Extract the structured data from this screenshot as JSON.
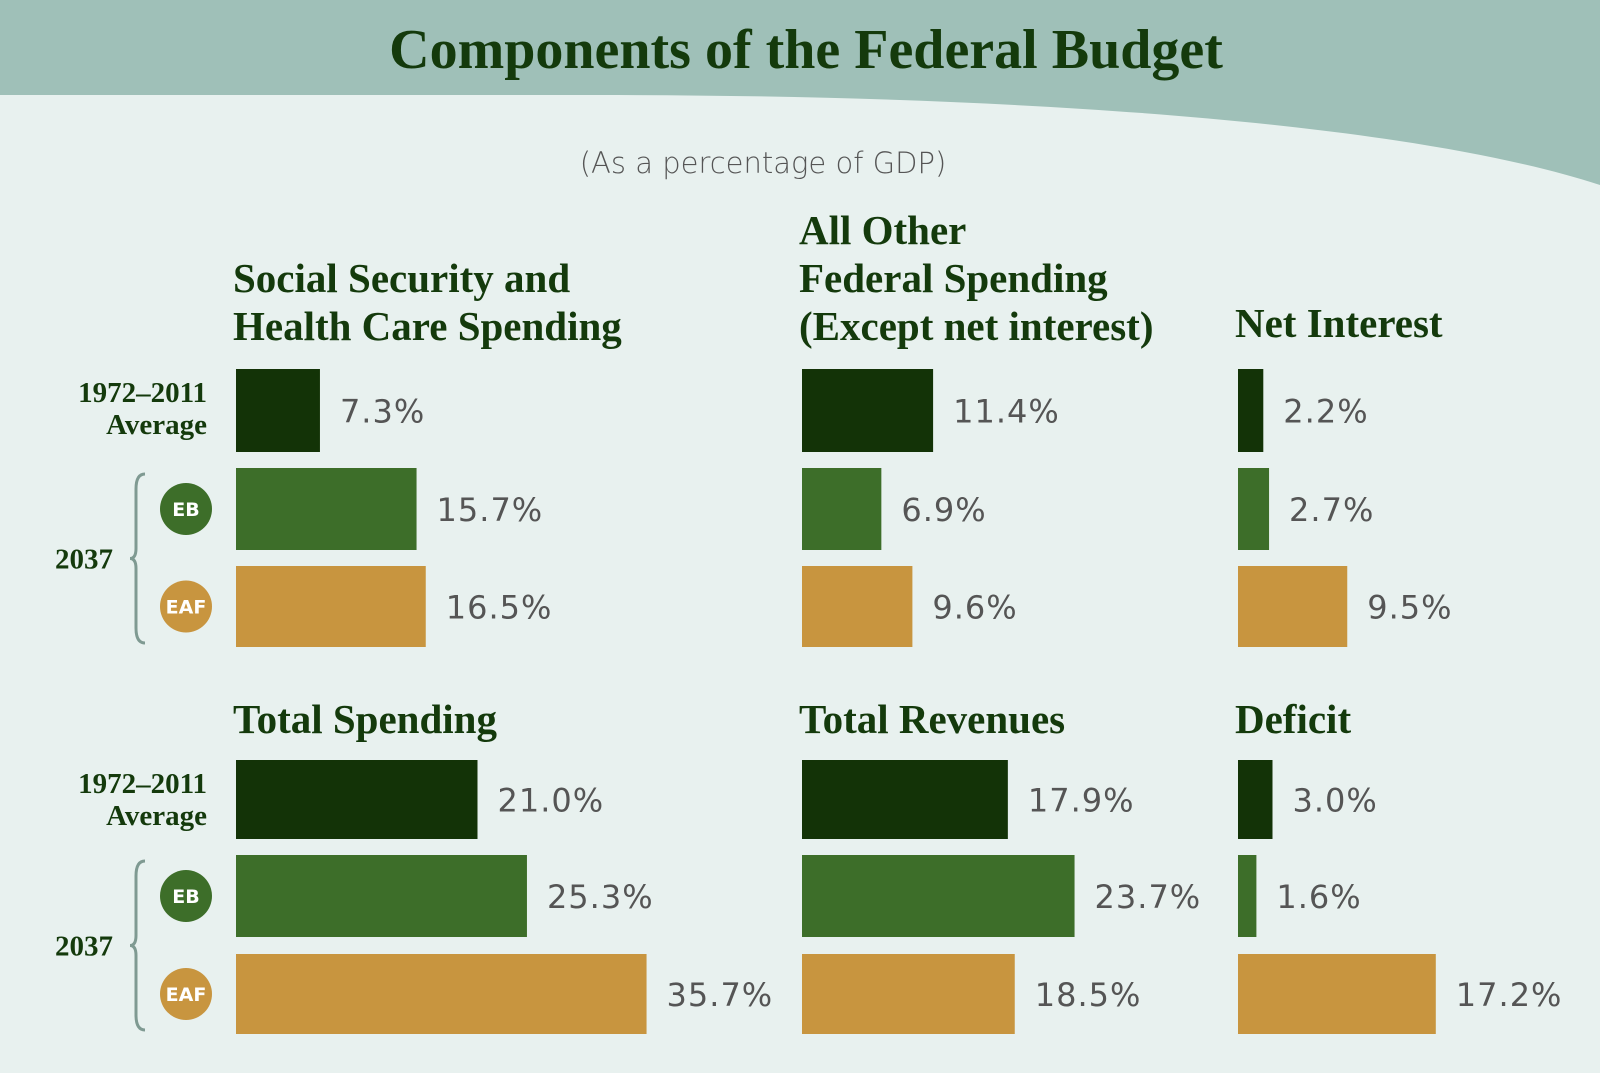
{
  "chart_data": {
    "type": "bar",
    "orientation": "horizontal",
    "title": "Components of the Federal Budget",
    "subtitle": "(As a percentage of GDP)",
    "unit": "%",
    "row_labels": {
      "average_line1": "1972–2011",
      "average_line2": "Average",
      "year": "2037",
      "eb": "EB",
      "eaf": "EAF"
    },
    "colors": {
      "average": "#133307",
      "eb": "#3d6e29",
      "eaf": "#c8953f",
      "header_band": "#9fc0b8",
      "background": "#e8f1ef",
      "title": "#143a0c"
    },
    "series_keys": [
      "average",
      "eb",
      "eaf"
    ],
    "panels": [
      {
        "title_lines": [
          "Social Security and",
          "Health Care Spending"
        ],
        "values": [
          7.3,
          15.7,
          16.5
        ]
      },
      {
        "title_lines": [
          "All Other",
          "Federal Spending",
          "(Except net interest)"
        ],
        "values": [
          11.4,
          6.9,
          9.6
        ]
      },
      {
        "title_lines": [
          "Net Interest"
        ],
        "values": [
          2.2,
          2.7,
          9.5
        ]
      },
      {
        "title_lines": [
          "Total Spending"
        ],
        "values": [
          21.0,
          25.3,
          35.7
        ]
      },
      {
        "title_lines": [
          "Total Revenues"
        ],
        "values": [
          17.9,
          23.7,
          18.5
        ]
      },
      {
        "title_lines": [
          "Deficit"
        ],
        "values": [
          3.0,
          1.6,
          17.2
        ]
      }
    ]
  }
}
